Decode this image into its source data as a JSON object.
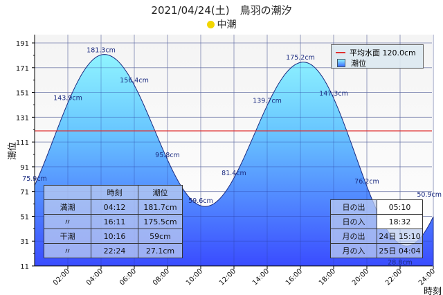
{
  "title": "2021/04/24(土)　鳥羽の潮汐",
  "moon_phase": {
    "icon": "moon-icon",
    "label": "中潮",
    "color": "#f2d600"
  },
  "chart_data": {
    "type": "area",
    "ylabel": "潮位",
    "xlabel": "時刻",
    "ylim": [
      11,
      197
    ],
    "yticks": [
      11,
      31,
      51,
      71,
      91,
      111,
      131,
      151,
      171,
      191
    ],
    "xticks": [
      "02:00",
      "04:00",
      "06:00",
      "08:00",
      "10:00",
      "12:00",
      "14:00",
      "16:00",
      "18:00",
      "20:00",
      "22:00",
      "24:00"
    ],
    "grid": true,
    "mean_level": {
      "label": "平均水面 120.0cm",
      "value": 120.0,
      "color": "#e03030"
    },
    "series": [
      {
        "name": "潮位",
        "extremes": [
          {
            "time": "00:00",
            "value": 75.9
          },
          {
            "time": "04:12",
            "value": 181.7
          },
          {
            "time": "10:16",
            "value": 59
          },
          {
            "time": "16:11",
            "value": 175.5
          },
          {
            "time": "22:24",
            "value": 27.1
          },
          {
            "time": "24:00",
            "value": 50.9
          }
        ]
      }
    ],
    "data_labels": [
      {
        "time": 0,
        "text": "75.9cm"
      },
      {
        "time": 2,
        "text": "143.9cm"
      },
      {
        "time": 4,
        "text": "181.3cm"
      },
      {
        "time": 6,
        "text": "156.4cm"
      },
      {
        "time": 8,
        "text": "95.8cm"
      },
      {
        "time": 10,
        "text": "59.6cm"
      },
      {
        "time": 12,
        "text": "81.4cm"
      },
      {
        "time": 14,
        "text": "139.7cm"
      },
      {
        "time": 16,
        "text": "175.2cm"
      },
      {
        "time": 18,
        "text": "147.3cm"
      },
      {
        "time": 20,
        "text": "76.2cm"
      },
      {
        "time": 22,
        "text": "28.8cm"
      },
      {
        "time": 24,
        "text": "50.9cm"
      }
    ],
    "legend_position": "top-right"
  },
  "tide_table": {
    "headers": [
      "",
      "時刻",
      "潮位"
    ],
    "rows": [
      [
        "満潮",
        "04:12",
        "181.7cm"
      ],
      [
        "〃",
        "16:11",
        "175.5cm"
      ],
      [
        "干潮",
        "10:16",
        "59cm"
      ],
      [
        "〃",
        "22:24",
        "27.1cm"
      ]
    ]
  },
  "sun_moon_table": {
    "rows": [
      [
        "日の出",
        "05:10"
      ],
      [
        "日の入",
        "18:32"
      ],
      [
        "月の出",
        "24日 15:10"
      ],
      [
        "月の入",
        "25日 04:04"
      ]
    ]
  }
}
